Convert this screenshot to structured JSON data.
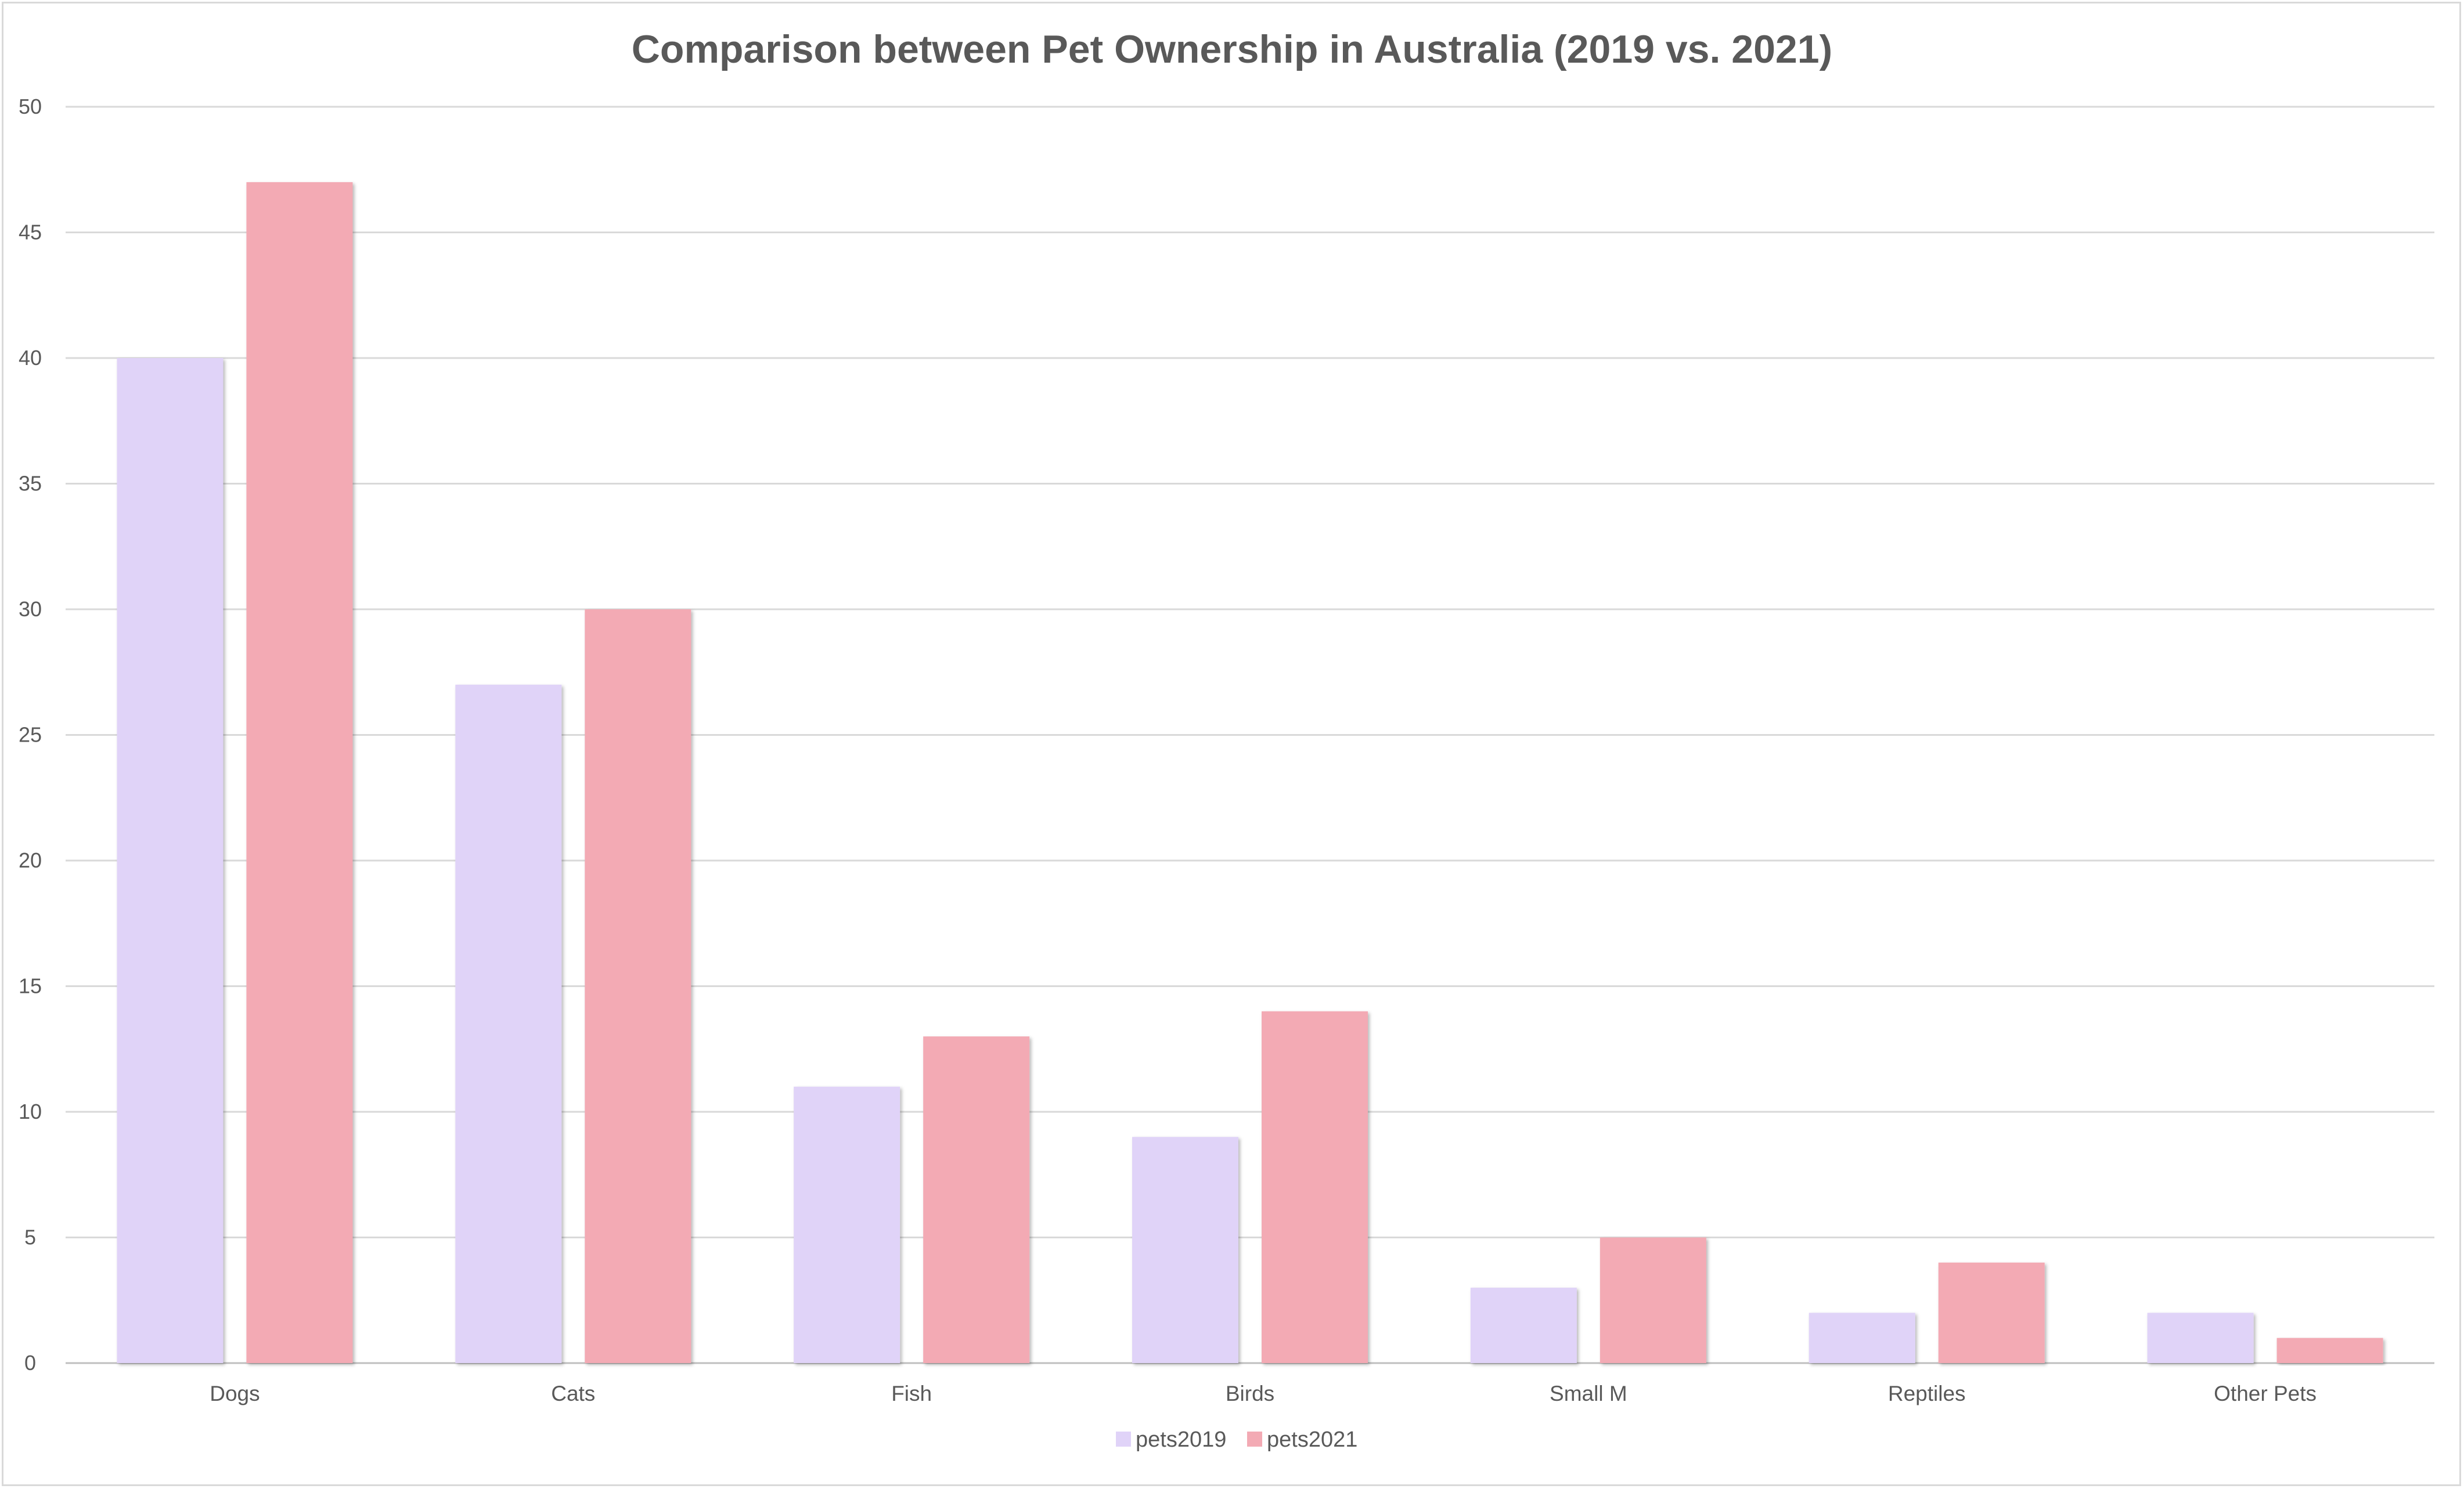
{
  "chart_data": {
    "type": "bar",
    "title": "Comparison between Pet Ownership in Australia (2019 vs. 2021)",
    "xlabel": "",
    "ylabel": "",
    "categories": [
      "Dogs",
      "Cats",
      "Fish",
      "Birds",
      "Small M",
      "Reptiles",
      "Other Pets"
    ],
    "series": [
      {
        "name": "pets2019",
        "values": [
          40,
          27,
          11,
          9,
          3,
          2,
          2
        ],
        "color": "#e0d3f8"
      },
      {
        "name": "pets2021",
        "values": [
          47,
          30,
          13,
          14,
          5,
          4,
          1
        ],
        "color": "#f3aab4"
      }
    ],
    "ylim": [
      0,
      50
    ],
    "yticks": [
      0,
      5,
      10,
      15,
      20,
      25,
      30,
      35,
      40,
      45,
      50
    ],
    "grid": true,
    "legend_position": "bottom"
  }
}
